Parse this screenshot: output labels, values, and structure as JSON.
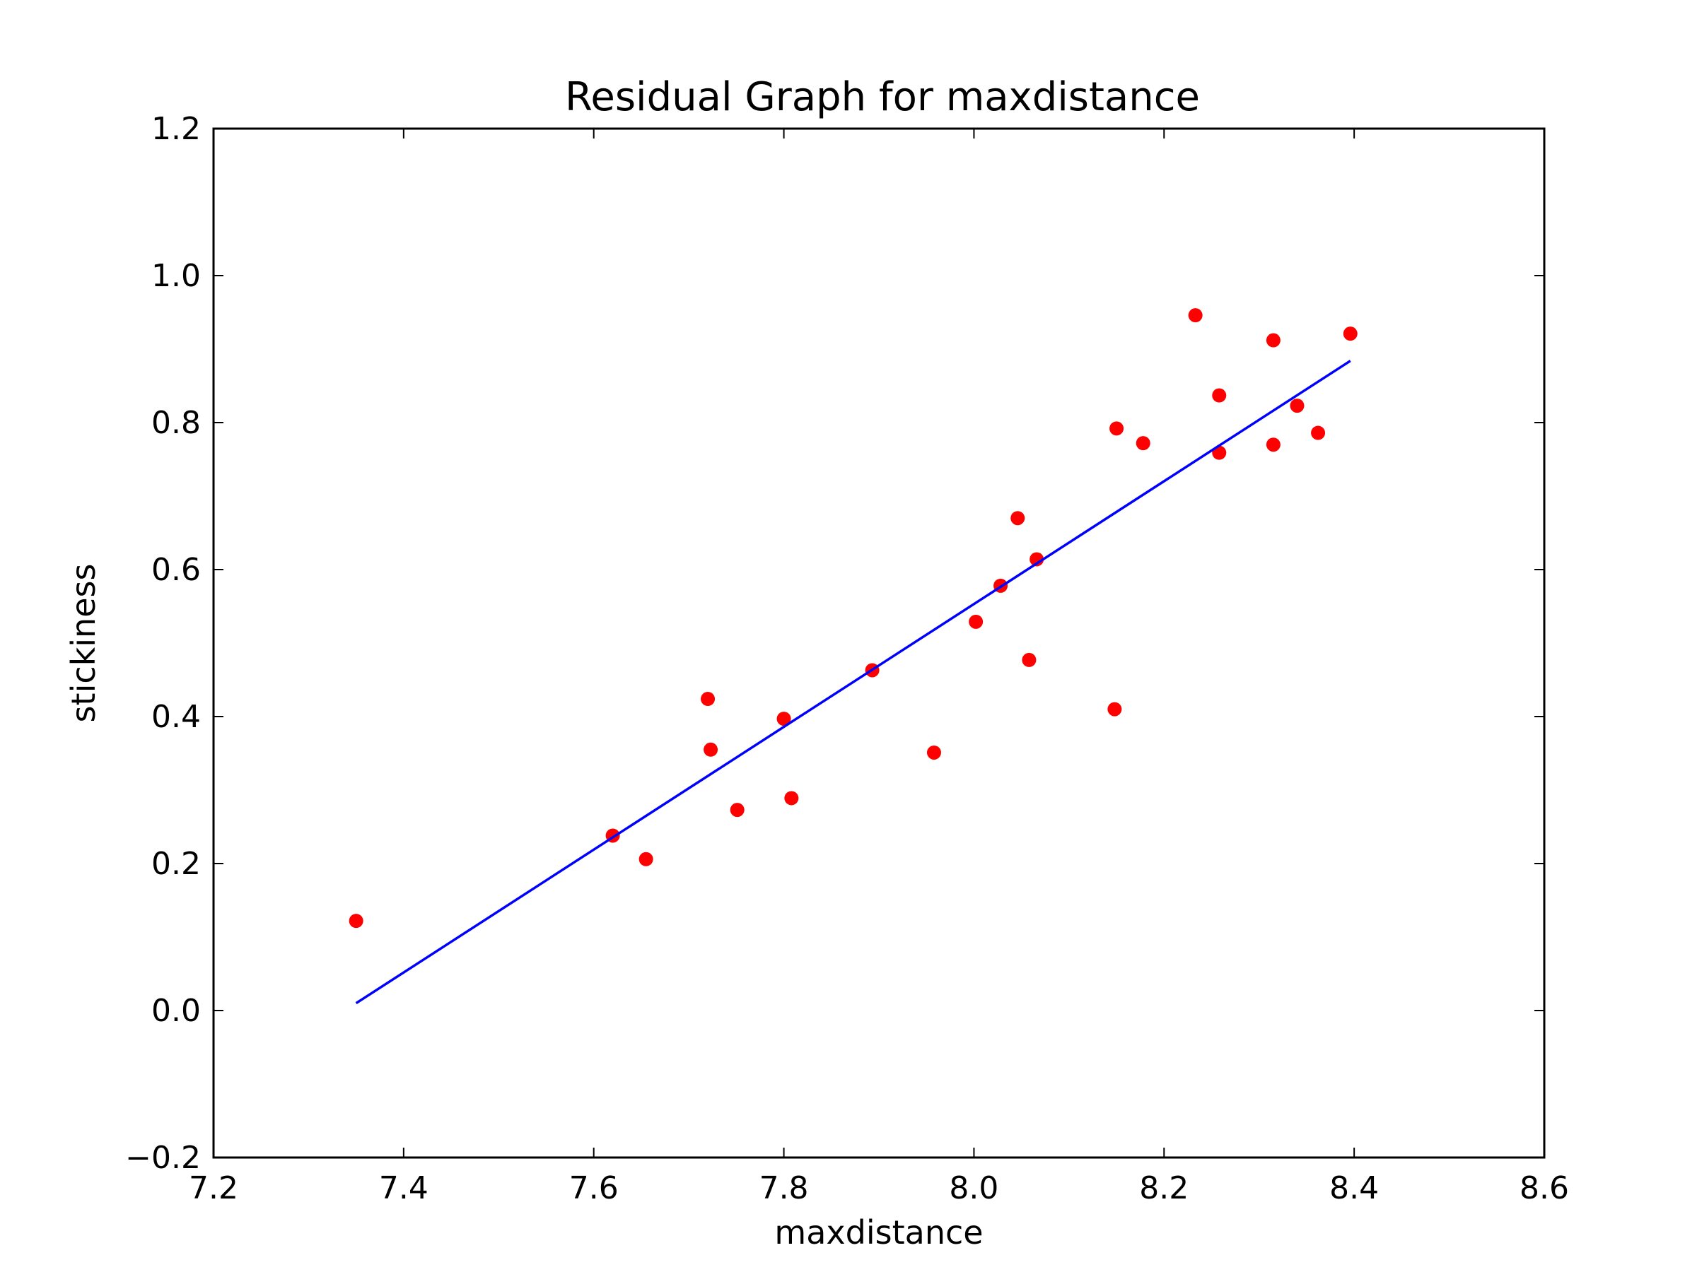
{
  "chart_data": {
    "type": "scatter",
    "title": "Residual Graph for maxdistance",
    "xlabel": "maxdistance",
    "ylabel": "stickiness",
    "xlim": [
      7.2,
      8.6
    ],
    "ylim": [
      -0.2,
      1.2
    ],
    "xticks": [
      7.2,
      7.4,
      7.6,
      7.8,
      8.0,
      8.2,
      8.4,
      8.6
    ],
    "xtick_labels": [
      "7.2",
      "7.4",
      "7.6",
      "7.8",
      "8.0",
      "8.2",
      "8.4",
      "8.6"
    ],
    "yticks": [
      -0.2,
      0.0,
      0.2,
      0.4,
      0.6,
      0.8,
      1.0,
      1.2
    ],
    "ytick_labels": [
      "−0.2",
      "0.0",
      "0.2",
      "0.4",
      "0.6",
      "0.8",
      "1.0",
      "1.2"
    ],
    "grid": false,
    "series": [
      {
        "kind": "points",
        "color": "#ff0000",
        "x": [
          7.35,
          7.62,
          7.655,
          7.72,
          7.723,
          7.751,
          7.8,
          7.808,
          7.893,
          7.958,
          8.002,
          8.028,
          8.046,
          8.058,
          8.066,
          8.148,
          8.15,
          8.178,
          8.233,
          8.258,
          8.258,
          8.315,
          8.315,
          8.34,
          8.362,
          8.396
        ],
        "y": [
          0.122,
          0.238,
          0.206,
          0.424,
          0.355,
          0.273,
          0.397,
          0.289,
          0.463,
          0.351,
          0.529,
          0.578,
          0.67,
          0.477,
          0.614,
          0.41,
          0.792,
          0.772,
          0.946,
          0.837,
          0.759,
          0.912,
          0.77,
          0.823,
          0.786,
          0.921
        ]
      },
      {
        "kind": "line",
        "color": "#0000ff",
        "x": [
          7.35,
          8.396
        ],
        "y": [
          0.01,
          0.884
        ]
      }
    ]
  }
}
